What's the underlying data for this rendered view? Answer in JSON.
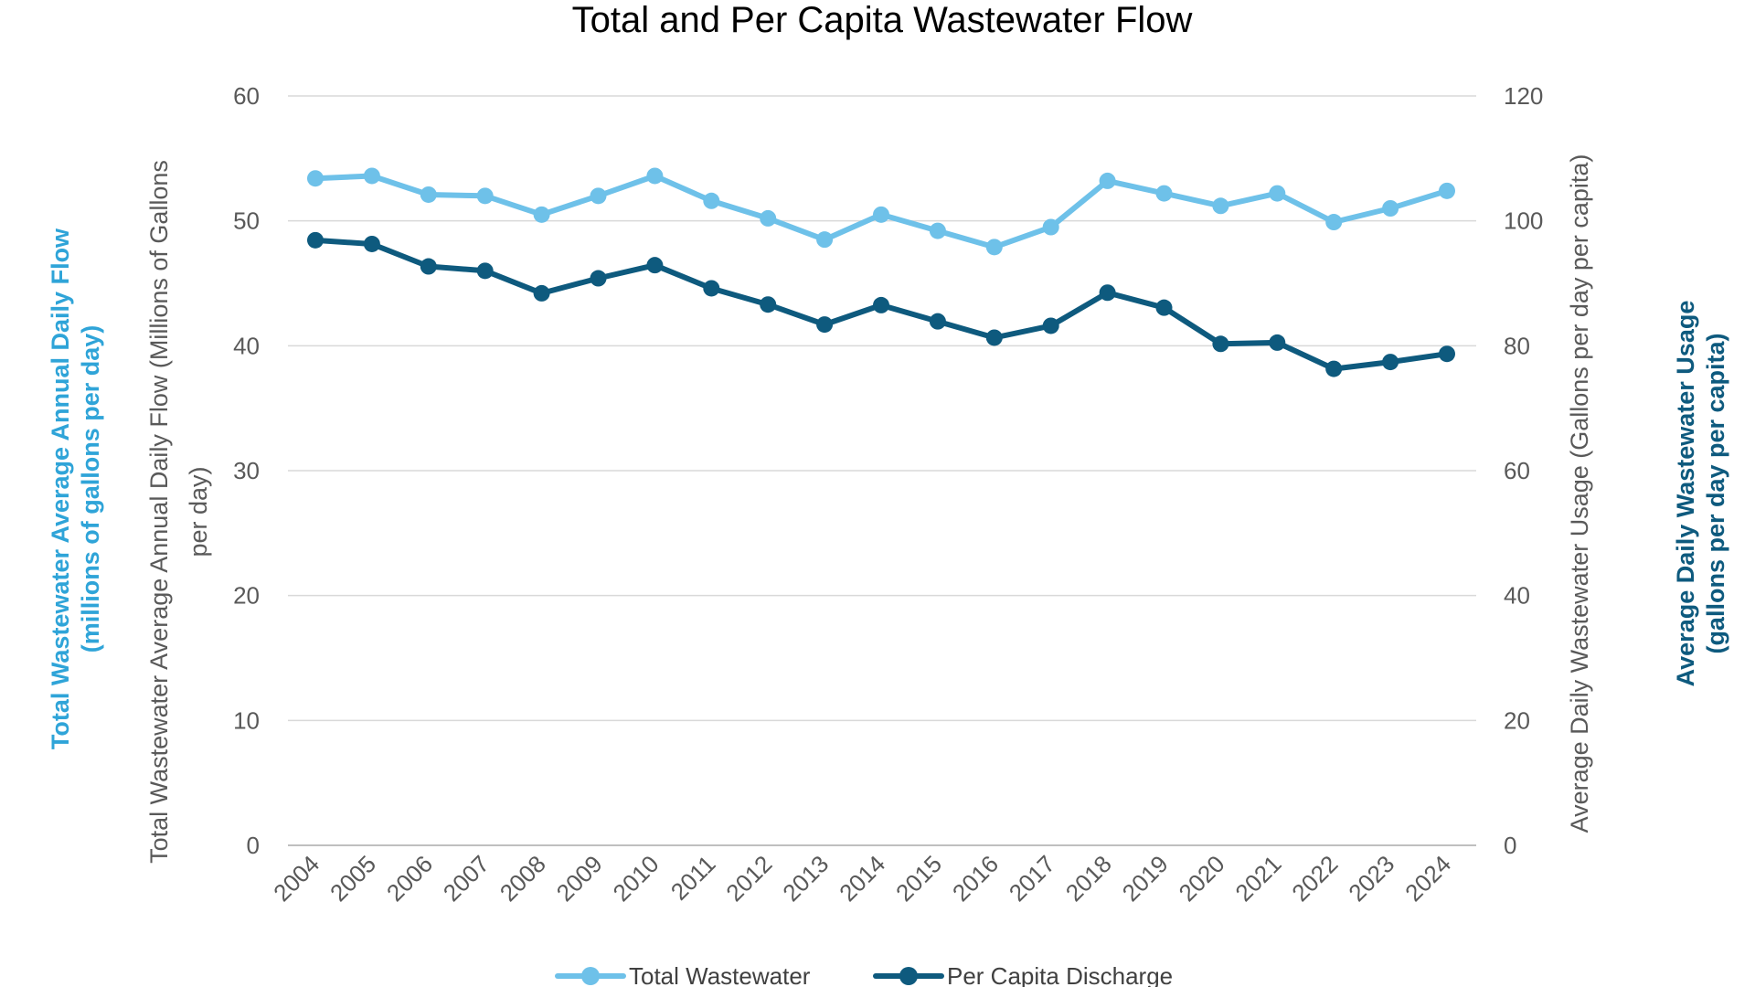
{
  "chart_data": {
    "type": "line",
    "title": "Total and Per Capita Wastewater Flow",
    "categories": [
      "2004",
      "2005",
      "2006",
      "2007",
      "2008",
      "2009",
      "2010",
      "2011",
      "2012",
      "2013",
      "2014",
      "2015",
      "2016",
      "2017",
      "2018",
      "2019",
      "2020",
      "2021",
      "2022",
      "2023",
      "2024"
    ],
    "series": [
      {
        "name": "Total Wastewater",
        "axis": "left",
        "color": "#6EC1E9",
        "values": [
          53.4,
          53.6,
          52.1,
          52.0,
          50.5,
          52.0,
          53.6,
          51.6,
          50.2,
          48.5,
          50.5,
          49.2,
          47.9,
          49.5,
          53.2,
          52.2,
          51.2,
          52.2,
          49.9,
          51.0,
          52.4
        ]
      },
      {
        "name": "Per Capita Discharge",
        "axis": "right",
        "color": "#0E5A7E",
        "values": [
          96.9,
          96.3,
          92.7,
          92.0,
          88.4,
          90.8,
          92.9,
          89.2,
          86.6,
          83.4,
          86.5,
          83.9,
          81.3,
          83.2,
          88.5,
          86.1,
          80.3,
          80.5,
          76.3,
          77.4,
          78.7
        ]
      }
    ],
    "y_left": {
      "label_gray": "Total Wastewater Average Annual Daily Flow (Millions of Gallons per day)",
      "label_gray_line1": "Total Wastewater Average Annual Daily Flow (Millions of Gallons",
      "label_gray_line2": "per day)",
      "label_blue_line1": "Total Wastewater Average Annual Daily Flow",
      "label_blue_line2": "(millions of gallons per day)",
      "label_color": "#2FA4D8",
      "ylim": [
        0,
        60
      ],
      "ticks": [
        "0",
        "10",
        "20",
        "30",
        "40",
        "50",
        "60"
      ]
    },
    "y_right": {
      "label_gray": "Average Daily Wastewater Usage (Gallons per day per capita)",
      "label_blue_line1": "Average Daily Wastewater Usage",
      "label_blue_line2": "(gallons per day per capita)",
      "label_color": "#0E5A7E",
      "ylim": [
        0,
        120
      ],
      "ticks": [
        "0",
        "20",
        "40",
        "60",
        "80",
        "100",
        "120"
      ]
    },
    "grid": true,
    "legend": "bottom",
    "legend_labels": [
      "Total Wastewater",
      "Per Capita Discharge"
    ]
  }
}
